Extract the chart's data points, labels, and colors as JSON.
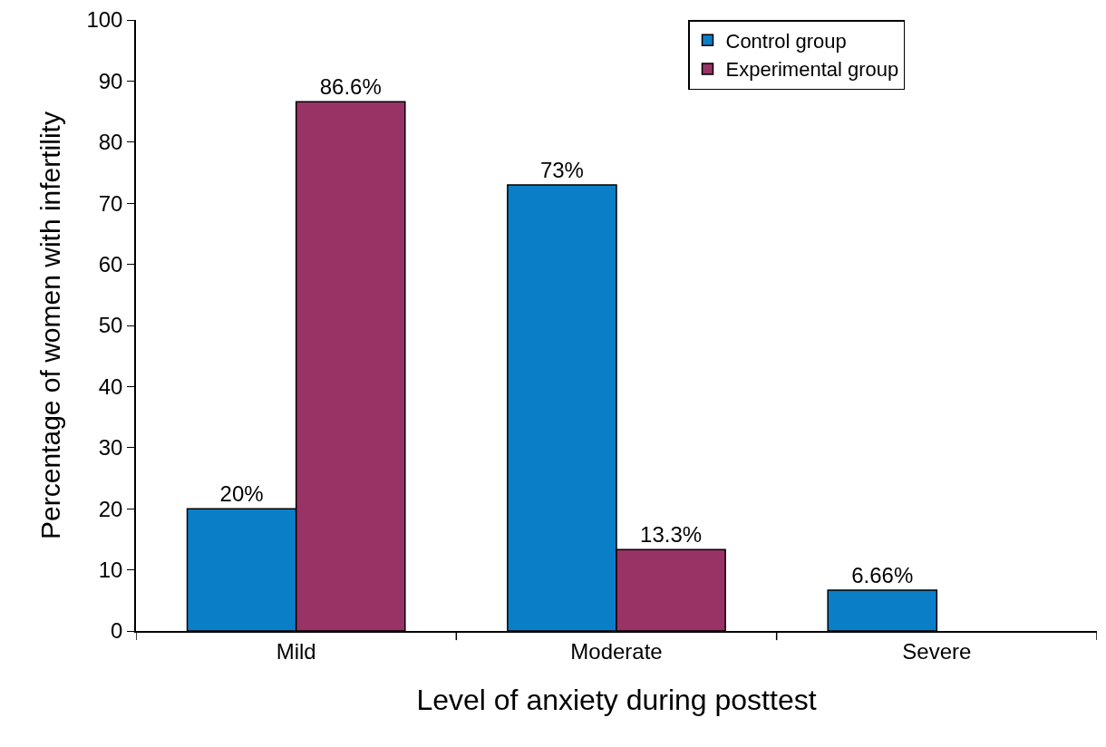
{
  "chart_data": {
    "type": "bar",
    "xlabel": "Level of anxiety during posttest",
    "ylabel": "Percentage of women with infertility",
    "categories": [
      "Mild",
      "Moderate",
      "Severe"
    ],
    "series": [
      {
        "name": "Control group",
        "color": "#0a7fc8",
        "values": [
          20,
          73,
          6.66
        ],
        "value_labels": [
          "20%",
          "73%",
          "6.66%"
        ]
      },
      {
        "name": "Experimental group",
        "color": "#993366",
        "values": [
          86.6,
          13.3,
          null
        ],
        "value_labels": [
          "86.6%",
          "13.3%",
          null
        ]
      }
    ],
    "ylim": [
      0,
      100
    ],
    "yticks": [
      0,
      10,
      20,
      30,
      40,
      50,
      60,
      70,
      80,
      90,
      100
    ],
    "grid": false,
    "legend": "top right"
  }
}
